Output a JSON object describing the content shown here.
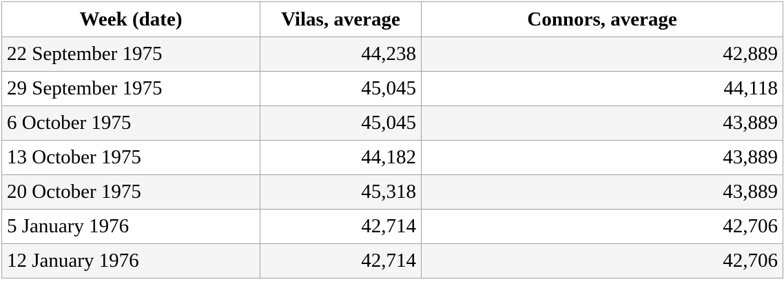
{
  "table": {
    "columns": [
      {
        "key": "week",
        "label": "Week (date)"
      },
      {
        "key": "vilas",
        "label": "Vilas, average"
      },
      {
        "key": "connors",
        "label": "Connors, average"
      }
    ],
    "rows": [
      {
        "week": "22 September 1975",
        "vilas": "44,238",
        "connors": "42,889"
      },
      {
        "week": "29 September 1975",
        "vilas": "45,045",
        "connors": "44,118"
      },
      {
        "week": "6 October 1975",
        "vilas": "45,045",
        "connors": "43,889"
      },
      {
        "week": "13 October 1975",
        "vilas": "44,182",
        "connors": "43,889"
      },
      {
        "week": "20 October 1975",
        "vilas": "45,318",
        "connors": "43,889"
      },
      {
        "week": "5 January 1976",
        "vilas": "42,714",
        "connors": "42,706"
      },
      {
        "week": "12 January 1976",
        "vilas": "42,714",
        "connors": "42,706"
      }
    ],
    "colors": {
      "border": "#a2a2a2",
      "stripe": "#f5f5f5",
      "background": "#ffffff",
      "text": "#000000"
    }
  }
}
